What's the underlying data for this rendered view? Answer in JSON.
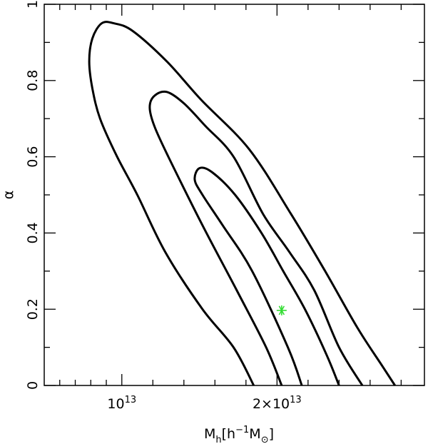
{
  "chart_data": {
    "type": "contour",
    "xlabel": "M_h[h^-1 M_⊙]",
    "ylabel": "α",
    "xlim": [
      5000000000000.0,
      29500000000000.0
    ],
    "ylim": [
      0,
      1
    ],
    "x_ticks": [
      {
        "value": 10000000000000.0,
        "mantissa": "",
        "exponent": "13"
      },
      {
        "value": 20000000000000.0,
        "mantissa": "2×",
        "exponent": "13"
      }
    ],
    "x_minor_ticks": [
      6000000000000.0,
      7000000000000.0,
      8000000000000.0,
      9000000000000.0,
      12000000000000.0,
      14000000000000.0,
      16000000000000.0,
      18000000000000.0,
      22000000000000.0,
      24000000000000.0,
      26000000000000.0,
      28000000000000.0
    ],
    "y_ticks": [
      {
        "value": 0,
        "label": "0"
      },
      {
        "value": 0.2,
        "label": "0.2"
      },
      {
        "value": 0.4,
        "label": "0.4"
      },
      {
        "value": 0.6,
        "label": "0.6"
      },
      {
        "value": 0.8,
        "label": "0.8"
      },
      {
        "value": 1,
        "label": "1"
      }
    ],
    "y_minor_ticks": [
      0.1,
      0.3,
      0.5,
      0.7,
      0.9
    ],
    "best_fit": {
      "x": 20300000000000.0,
      "y": 0.197,
      "color": "#33dd33"
    },
    "contours": [
      {
        "level": "outer",
        "points": [
          [
            18500000000000.0,
            0
          ],
          [
            17200000000000.0,
            0.1
          ],
          [
            15200000000000.0,
            0.2
          ],
          [
            12800000000000.0,
            0.35
          ],
          [
            11000000000000.0,
            0.5
          ],
          [
            9700000000000.0,
            0.6
          ],
          [
            8600000000000.0,
            0.7
          ],
          [
            8100000000000.0,
            0.78
          ],
          [
            7900000000000.0,
            0.85
          ],
          [
            8100000000000.0,
            0.91
          ],
          [
            8700000000000.0,
            0.95
          ],
          [
            9500000000000.0,
            0.95
          ],
          [
            10700000000000.0,
            0.93
          ],
          [
            12900000000000.0,
            0.85
          ],
          [
            15100000000000.0,
            0.75
          ],
          [
            18200000000000.0,
            0.62
          ],
          [
            20900000000000.0,
            0.45
          ],
          [
            23100000000000.0,
            0.3
          ],
          [
            25200000000000.0,
            0.15
          ],
          [
            26800000000000.0,
            0.05
          ],
          [
            27600000000000.0,
            0
          ]
        ]
      },
      {
        "level": "middle",
        "points": [
          [
            20300000000000.0,
            0
          ],
          [
            19300000000000.0,
            0.1
          ],
          [
            17400000000000.0,
            0.25
          ],
          [
            15200000000000.0,
            0.42
          ],
          [
            13000000000000.0,
            0.6
          ],
          [
            12100000000000.0,
            0.68
          ],
          [
            11800000000000.0,
            0.73
          ],
          [
            12100000000000.0,
            0.76
          ],
          [
            12900000000000.0,
            0.77
          ],
          [
            14000000000000.0,
            0.74
          ],
          [
            15400000000000.0,
            0.68
          ],
          [
            17200000000000.0,
            0.6
          ],
          [
            19100000000000.0,
            0.45
          ],
          [
            20800000000000.0,
            0.35
          ],
          [
            22400000000000.0,
            0.25
          ],
          [
            24000000000000.0,
            0.1
          ],
          [
            25500000000000.0,
            0
          ]
        ]
      },
      {
        "level": "inner",
        "points": [
          [
            21600000000000.0,
            0
          ],
          [
            20700000000000.0,
            0.1
          ],
          [
            18400000000000.0,
            0.3
          ],
          [
            16500000000000.0,
            0.42
          ],
          [
            15200000000000.0,
            0.5
          ],
          [
            14700000000000.0,
            0.54
          ],
          [
            15000000000000.0,
            0.57
          ],
          [
            15800000000000.0,
            0.56
          ],
          [
            17300000000000.0,
            0.5
          ],
          [
            19000000000000.0,
            0.4
          ],
          [
            20400000000000.0,
            0.3
          ],
          [
            21800000000000.0,
            0.2
          ],
          [
            23200000000000.0,
            0.08
          ],
          [
            24000000000000.0,
            0
          ]
        ]
      }
    ]
  }
}
